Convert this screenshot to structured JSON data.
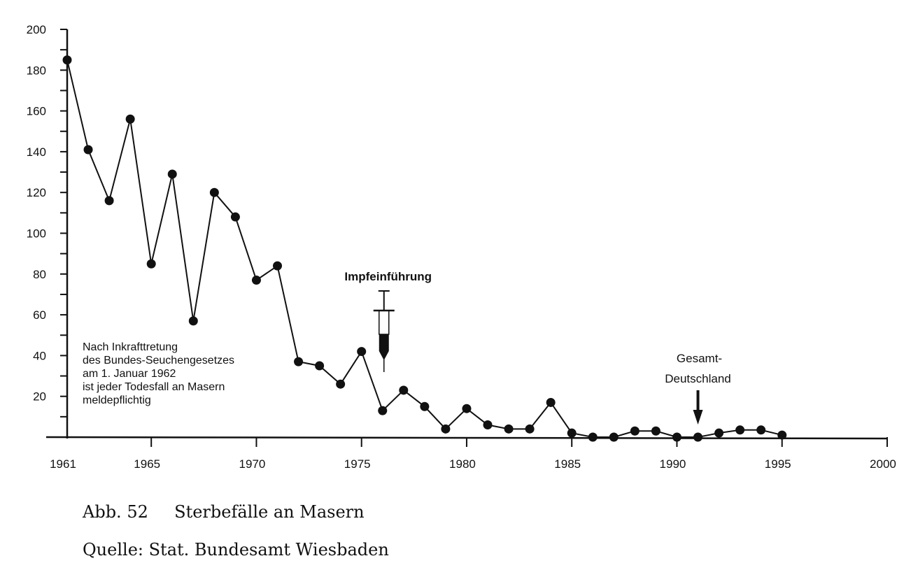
{
  "chart_data": {
    "type": "line",
    "title": "Sterbefälle an Masern",
    "xlabel": "",
    "ylabel": "",
    "xlim": [
      1961,
      2000
    ],
    "ylim": [
      0,
      200
    ],
    "x_ticks": [
      "1961",
      "1965",
      "1970",
      "1975",
      "1980",
      "1985",
      "1990",
      "1995",
      "2000"
    ],
    "y_ticks": [
      "20",
      "40",
      "60",
      "80",
      "100",
      "120",
      "140",
      "160",
      "180",
      "200"
    ],
    "grid": false,
    "series": [
      {
        "name": "Sterbefälle",
        "x": [
          1961,
          1962,
          1963,
          1964,
          1965,
          1966,
          1967,
          1968,
          1969,
          1970,
          1971,
          1972,
          1973,
          1974,
          1975,
          1976,
          1977,
          1978,
          1979,
          1980,
          1981,
          1982,
          1983,
          1984,
          1985,
          1986,
          1987,
          1988,
          1989,
          1990,
          1991,
          1992,
          1993,
          1994,
          1995
        ],
        "values": [
          185,
          141,
          116,
          156,
          85,
          129,
          57,
          120,
          108,
          77,
          84,
          37,
          35,
          26,
          42,
          13,
          23,
          15,
          4,
          14,
          6,
          4,
          4,
          17,
          2,
          0,
          0,
          3,
          3,
          0,
          0,
          2,
          3.5,
          3.5,
          1
        ]
      }
    ],
    "annotations": {
      "vaccination": {
        "label": "Impfeinführung",
        "year": 1976
      },
      "reunification": {
        "label_line1": "Gesamt-",
        "label_line2": "Deutschland",
        "year": 1991
      },
      "note_lines": [
        "Nach Inkrafttretung",
        "des Bundes-Seuchengesetzes",
        "am 1. Januar 1962",
        "ist jeder Todesfall an Masern",
        "meldepflichtig"
      ]
    }
  },
  "caption": {
    "figure": "Abb. 52",
    "title": "Sterbefälle an Masern",
    "source": "Quelle: Stat. Bundesamt Wiesbaden"
  }
}
